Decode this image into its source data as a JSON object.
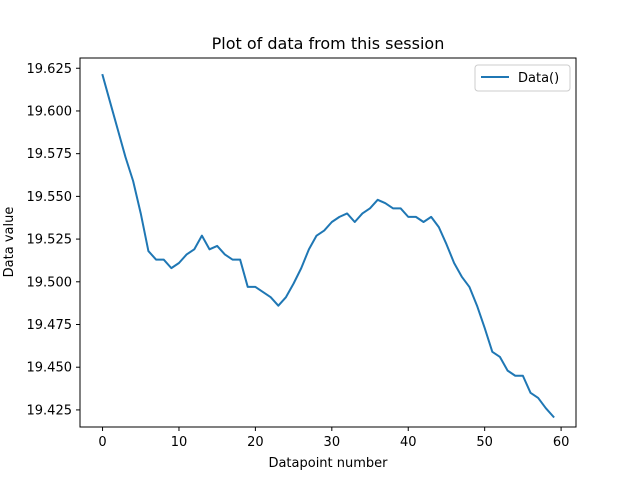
{
  "chart_data": {
    "type": "line",
    "title": "Plot of data from this session",
    "xlabel": "Datapoint number",
    "ylabel": "Data value",
    "xlim": [
      -2.95,
      61.95
    ],
    "ylim": [
      19.415,
      19.631
    ],
    "x_ticks": [
      0,
      10,
      20,
      30,
      40,
      50,
      60
    ],
    "x_tick_labels": [
      "0",
      "10",
      "20",
      "30",
      "40",
      "50",
      "60"
    ],
    "y_ticks": [
      19.425,
      19.45,
      19.475,
      19.5,
      19.525,
      19.55,
      19.575,
      19.6,
      19.625
    ],
    "y_tick_labels": [
      "19.425",
      "19.450",
      "19.475",
      "19.500",
      "19.525",
      "19.550",
      "19.575",
      "19.600",
      "19.625"
    ],
    "grid": false,
    "legend_position": "top-right",
    "series": [
      {
        "name": "Data()",
        "color": "#1f77b4",
        "x": [
          0,
          1,
          2,
          3,
          4,
          5,
          6,
          7,
          8,
          9,
          10,
          11,
          12,
          13,
          14,
          15,
          16,
          17,
          18,
          19,
          20,
          21,
          22,
          23,
          24,
          25,
          26,
          27,
          28,
          29,
          30,
          31,
          32,
          33,
          34,
          35,
          36,
          37,
          38,
          39,
          40,
          41,
          42,
          43,
          44,
          45,
          46,
          47,
          48,
          49,
          50,
          51,
          52,
          53,
          54,
          55,
          56,
          57,
          58,
          59
        ],
        "y": [
          19.621,
          19.605,
          19.589,
          19.573,
          19.559,
          19.54,
          19.518,
          19.513,
          19.513,
          19.508,
          19.511,
          19.516,
          19.519,
          19.527,
          19.519,
          19.521,
          19.516,
          19.513,
          19.513,
          19.497,
          19.497,
          19.494,
          19.491,
          19.486,
          19.491,
          19.499,
          19.508,
          19.519,
          19.527,
          19.53,
          19.535,
          19.538,
          19.54,
          19.535,
          19.54,
          19.543,
          19.548,
          19.546,
          19.543,
          19.543,
          19.538,
          19.538,
          19.535,
          19.538,
          19.532,
          19.522,
          19.511,
          19.503,
          19.497,
          19.486,
          19.473,
          19.459,
          19.456,
          19.448,
          19.445,
          19.445,
          19.435,
          19.432,
          19.426,
          19.421
        ]
      }
    ]
  }
}
